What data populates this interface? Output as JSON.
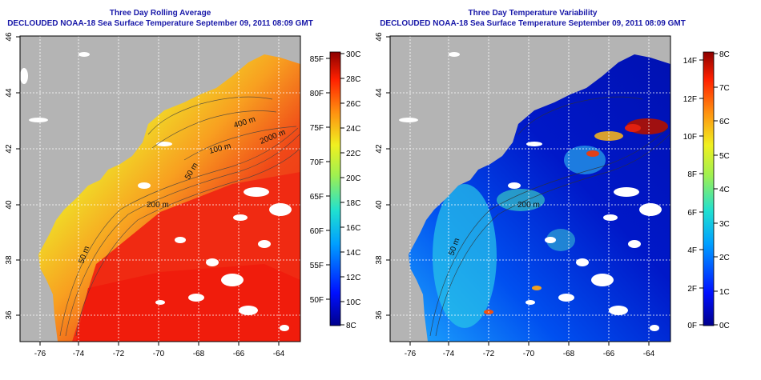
{
  "colors": {
    "land": "#b4b4b4",
    "title": "#1818a8",
    "frame": "#000000",
    "grid": "#ffffff"
  },
  "left_panel": {
    "title": "Three Day Rolling Average",
    "subtitle": "DECLOUDED NOAA-18 Sea Surface Temperature September 09, 2011 08:09 GMT",
    "lat_ticks": [
      "46",
      "44",
      "42",
      "40",
      "38",
      "36"
    ],
    "lon_ticks": [
      "-76",
      "-74",
      "-72",
      "-70",
      "-68",
      "-66",
      "-64"
    ],
    "contour_labels": [
      "400 m",
      "2000 m",
      "100 m",
      "50 m",
      "200 m",
      "50 m"
    ],
    "colorbar": {
      "celsius": [
        "30C",
        "28C",
        "26C",
        "24C",
        "22C",
        "20C",
        "18C",
        "16C",
        "14C",
        "12C",
        "10C",
        "8C"
      ],
      "fahrenheit": [
        "85F",
        "80F",
        "75F",
        "70F",
        "65F",
        "60F",
        "55F",
        "50F"
      ]
    }
  },
  "right_panel": {
    "title": "Three Day Temperature Variability",
    "subtitle": "DECLOUDED NOAA-18 Sea Surface Temperature September 09, 2011 08:09 GMT",
    "lat_ticks": [
      "46",
      "44",
      "42",
      "40",
      "38",
      "36"
    ],
    "lon_ticks": [
      "-76",
      "-74",
      "-72",
      "-70",
      "-68",
      "-66",
      "-64"
    ],
    "contour_labels": [
      "200 m",
      "50 m"
    ],
    "colorbar": {
      "celsius": [
        "8C",
        "7C",
        "6C",
        "5C",
        "4C",
        "3C",
        "2C",
        "1C",
        "0C"
      ],
      "fahrenheit": [
        "14F",
        "12F",
        "10F",
        "8F",
        "6F",
        "4F",
        "2F",
        "0F"
      ]
    }
  }
}
